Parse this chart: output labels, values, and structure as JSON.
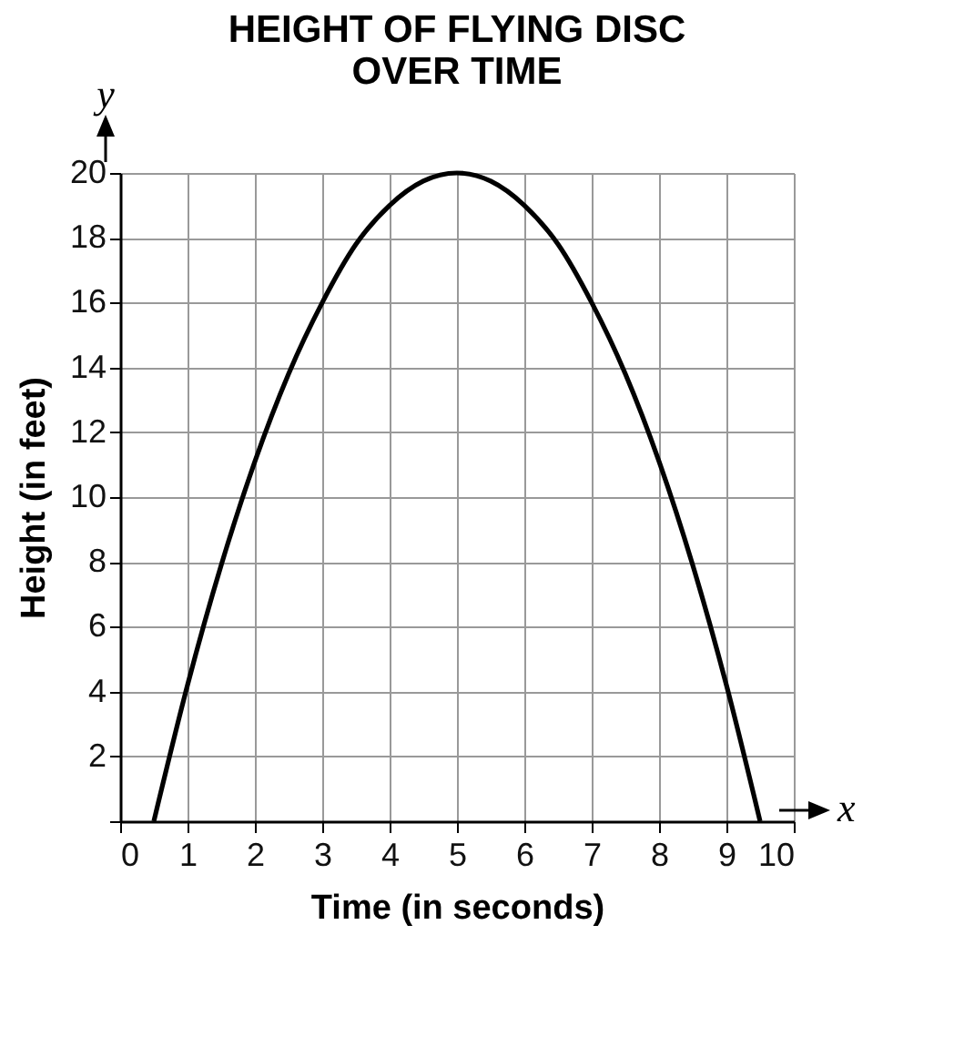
{
  "chart_data": {
    "type": "line",
    "title": "HEIGHT OF FLYING DISC\nOVER TIME",
    "xlabel": "Time (in seconds)",
    "ylabel": "Height (in feet)",
    "annotations": [
      "y",
      "x"
    ],
    "x": [
      0.5,
      1,
      1.5,
      2,
      2.5,
      3,
      3.5,
      4,
      4.5,
      5,
      5.5,
      6,
      6.5,
      7,
      7.5,
      8,
      8.5,
      9,
      9.5
    ],
    "series": [
      {
        "color": "#000000",
        "values": [
          0,
          4.2,
          7.9,
          11.1,
          13.8,
          16,
          17.8,
          19,
          19.75,
          20,
          19.75,
          19,
          17.8,
          16,
          13.8,
          11.1,
          7.9,
          4.2,
          0
        ]
      }
    ],
    "xlim": [
      0,
      10
    ],
    "ylim": [
      0,
      20
    ],
    "xticks": [
      0,
      1,
      2,
      3,
      4,
      5,
      6,
      7,
      8,
      9,
      10
    ],
    "yticks": [
      {
        "value": 0,
        "label": null
      },
      2,
      4,
      6,
      8,
      10,
      12,
      14,
      16,
      18,
      20
    ],
    "grid": true,
    "marker": "none",
    "line_style": "solid"
  }
}
